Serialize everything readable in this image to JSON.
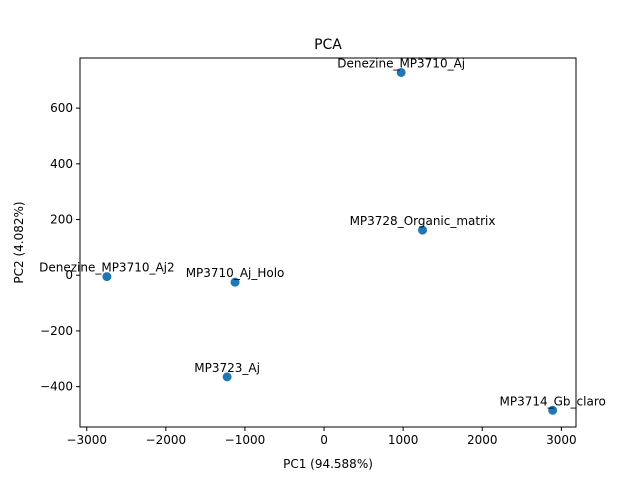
{
  "chart_data": {
    "type": "scatter",
    "title": "PCA",
    "xlabel": "PC1 (94.588%)",
    "ylabel": "PC2 (4.082%)",
    "xlim": [
      -3085,
      3185
    ],
    "ylim": [
      -545,
      780
    ],
    "xticks": [
      -3000,
      -2000,
      -1000,
      0,
      1000,
      2000,
      3000
    ],
    "yticks": [
      -400,
      -200,
      0,
      200,
      400,
      600
    ],
    "grid": false,
    "marker_color": "#1f77b4",
    "points": [
      {
        "label": "Denezine_MP3710_Aj",
        "x": 975,
        "y": 728
      },
      {
        "label": "MP3728_Organic_matrix",
        "x": 1245,
        "y": 162
      },
      {
        "label": "Denezine_MP3710_Aj2",
        "x": -2745,
        "y": -5
      },
      {
        "label": "MP3710_Aj_Holo",
        "x": -1125,
        "y": -25
      },
      {
        "label": "MP3723_Aj",
        "x": -1225,
        "y": -365
      },
      {
        "label": "MP3714_Gb_claro",
        "x": 2890,
        "y": -485
      }
    ]
  }
}
